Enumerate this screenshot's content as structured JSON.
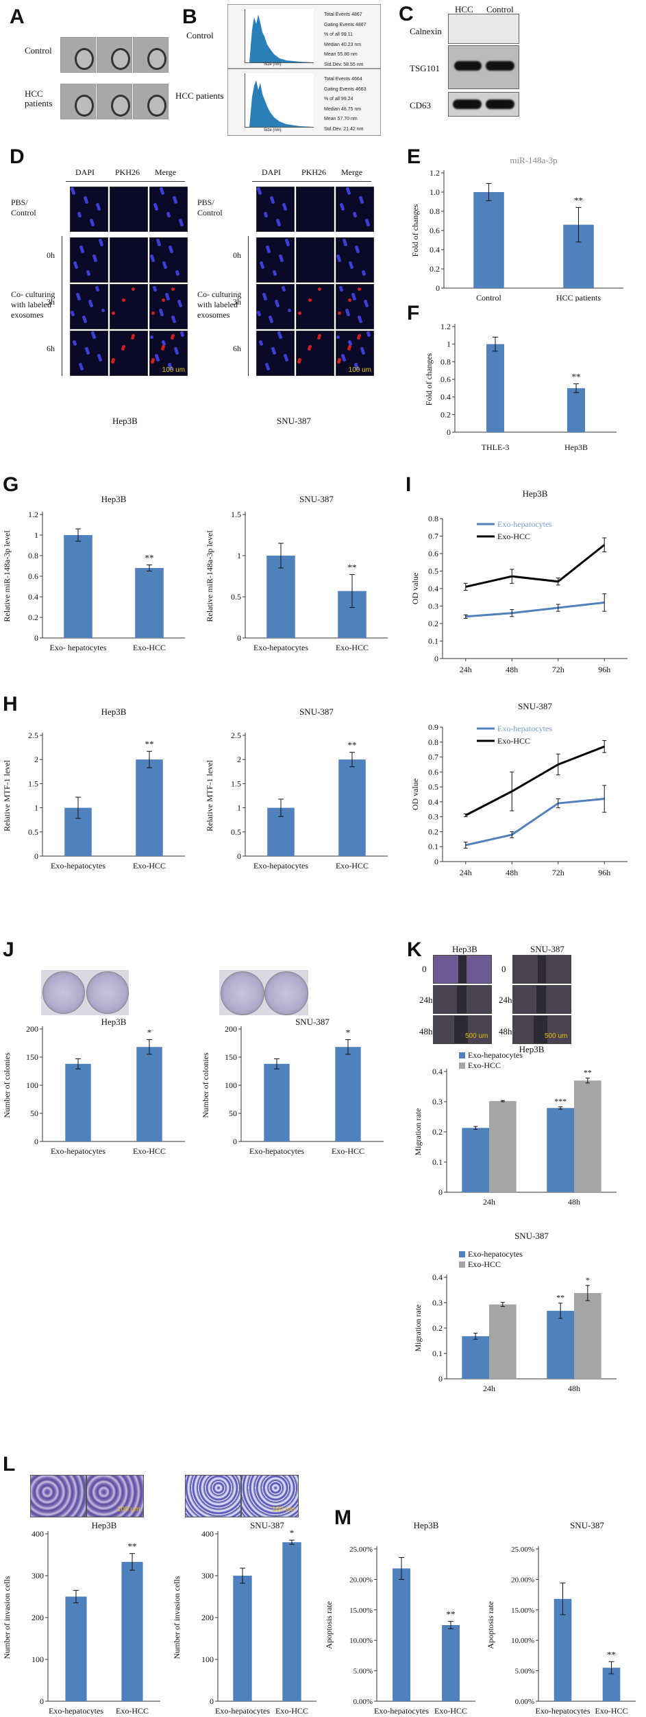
{
  "panels": {
    "A": {
      "letter": "A",
      "rows": [
        "Control",
        "HCC patients"
      ]
    },
    "B": {
      "letter": "B",
      "rows": [
        "Control",
        "HCC patients"
      ],
      "table_labels": [
        "Total Events",
        "Gating Events",
        "% of all",
        "Median",
        "Mean",
        "Std.Dev."
      ],
      "control_values": [
        "4867",
        "4867",
        "99.11",
        "40.23",
        "55.86",
        "58.55"
      ],
      "hcc_values": [
        "4664",
        "4663",
        "99.24",
        "48.75",
        "57.70",
        "21.42"
      ],
      "unit": "nm",
      "x_axis": "Size (nm)"
    },
    "C": {
      "letter": "C",
      "cols": [
        "HCC",
        "Control"
      ],
      "rows": [
        "Calnexin",
        "TSG101",
        "CD63"
      ]
    },
    "D": {
      "letter": "D",
      "cols": [
        "DAPI",
        "PKH26",
        "Merge"
      ],
      "control_label": "PBS/ Control",
      "group_label": "Co- culturing with labeled exosomes",
      "times": [
        "0h",
        "3h",
        "6h"
      ],
      "scale": "100 um",
      "left_cell": "Hep3B",
      "right_cell": "SNU-387"
    },
    "E": {
      "letter": "E",
      "title": "miR-148a-3p"
    },
    "F": {
      "letter": "F"
    },
    "G": {
      "letter": "G"
    },
    "H": {
      "letter": "H"
    },
    "I": {
      "letter": "I"
    },
    "J": {
      "letter": "J"
    },
    "K": {
      "letter": "K",
      "cols": [
        "Hep3B",
        "SNU-387"
      ],
      "rows": [
        "0",
        "24h",
        "48h"
      ],
      "scale": "500 um"
    },
    "L": {
      "letter": "L",
      "scale": "100 um"
    },
    "M": {
      "letter": "M"
    }
  },
  "chart_data": [
    {
      "id": "E",
      "type": "bar",
      "title": "miR-148a-3p",
      "categories": [
        "Control",
        "HCC patients"
      ],
      "values": [
        1.0,
        0.66
      ],
      "errors": [
        0.09,
        0.18
      ],
      "sig": [
        "",
        "**"
      ],
      "ylabel": "Fold of changes",
      "ylim": [
        0,
        1.2
      ],
      "ticks": [
        0,
        0.2,
        0.4,
        0.6,
        0.8,
        1.0,
        1.2
      ],
      "tick_labels": [
        "0",
        "0.2",
        "0.4",
        "0.6",
        "0.8",
        "1.0",
        "1.2"
      ]
    },
    {
      "id": "F",
      "type": "bar",
      "title": "",
      "categories": [
        "THLE-3",
        "Hep3B"
      ],
      "values": [
        1.0,
        0.5
      ],
      "errors": [
        0.08,
        0.05
      ],
      "sig": [
        "",
        "**"
      ],
      "ylabel": "Fold of changes",
      "ylim": [
        0,
        1.2
      ],
      "ticks": [
        0,
        0.2,
        0.4,
        0.6,
        0.8,
        1.0,
        1.2
      ],
      "tick_labels": [
        "0",
        "0.2",
        "0.4",
        "0.6",
        "0.8",
        "1",
        "1.2"
      ]
    },
    {
      "id": "G1",
      "type": "bar",
      "title": "Hep3B",
      "categories": [
        "Exo- hepatocytes",
        "Exo-HCC"
      ],
      "values": [
        1.0,
        0.68
      ],
      "errors": [
        0.06,
        0.03
      ],
      "sig": [
        "",
        "**"
      ],
      "ylabel": "Relative miR-148a-3p level",
      "ylim": [
        0,
        1.2
      ],
      "ticks": [
        0,
        0.2,
        0.4,
        0.6,
        0.8,
        1.0,
        1.2
      ],
      "tick_labels": [
        "0",
        "0.2",
        "0.4",
        "0.6",
        "0.8",
        "1",
        "1.2"
      ]
    },
    {
      "id": "G2",
      "type": "bar",
      "title": "SNU-387",
      "categories": [
        "Exo-hepatocytes",
        "Exo-HCC"
      ],
      "values": [
        1.0,
        0.57
      ],
      "errors": [
        0.15,
        0.2
      ],
      "sig": [
        "",
        "**"
      ],
      "ylabel": "Relative miR-148a-3p level",
      "ylim": [
        0,
        1.5
      ],
      "ticks": [
        0,
        0.5,
        1.0,
        1.5
      ],
      "tick_labels": [
        "0",
        "0.5",
        "1",
        "1.5"
      ]
    },
    {
      "id": "H1",
      "type": "bar",
      "title": "Hep3B",
      "categories": [
        "Exo-hepatocytes",
        "Exo-HCC"
      ],
      "values": [
        1.0,
        2.0
      ],
      "errors": [
        0.22,
        0.17
      ],
      "sig": [
        "",
        "**"
      ],
      "ylabel": "Relative MTF-1 level",
      "ylim": [
        0,
        2.5
      ],
      "ticks": [
        0,
        0.5,
        1.0,
        1.5,
        2.0,
        2.5
      ],
      "tick_labels": [
        "0",
        "0.5",
        "1",
        "1.5",
        "2",
        "2.5"
      ]
    },
    {
      "id": "H2",
      "type": "bar",
      "title": "SNU-387",
      "categories": [
        "Exo-hepatocytes",
        "Exo-HCC"
      ],
      "values": [
        1.0,
        2.0
      ],
      "errors": [
        0.18,
        0.15
      ],
      "sig": [
        "",
        "**"
      ],
      "ylabel": "Relative MTF-1 level",
      "ylim": [
        0,
        2.5
      ],
      "ticks": [
        0,
        0.5,
        1.0,
        1.5,
        2.0,
        2.5
      ],
      "tick_labels": [
        "0",
        "0.5",
        "1",
        "1.5",
        "2",
        "2.5"
      ]
    },
    {
      "id": "I1",
      "type": "line",
      "title": "Hep3B",
      "x": [
        "24h",
        "48h",
        "72h",
        "96h"
      ],
      "series": [
        {
          "name": "Exo-hepatocytes",
          "color": "#4f81bd",
          "values": [
            0.24,
            0.26,
            0.29,
            0.32
          ],
          "errors": [
            0.01,
            0.02,
            0.02,
            0.05
          ]
        },
        {
          "name": "Exo-HCC",
          "color": "#000000",
          "values": [
            0.41,
            0.47,
            0.44,
            0.65
          ],
          "errors": [
            0.02,
            0.04,
            0.02,
            0.04
          ]
        }
      ],
      "ylabel": "OD value",
      "ylim": [
        0,
        0.8
      ],
      "ticks": [
        0,
        0.1,
        0.2,
        0.3,
        0.4,
        0.5,
        0.6,
        0.7,
        0.8
      ],
      "tick_labels": [
        "0",
        "0.1",
        "0.2",
        "0.3",
        "0.4",
        "0.5",
        "0.6",
        "0.7",
        "0.8"
      ]
    },
    {
      "id": "I2",
      "type": "line",
      "title": "SNU-387",
      "x": [
        "24h",
        "48h",
        "72h",
        "96h"
      ],
      "series": [
        {
          "name": "Exo-hepatocytes",
          "color": "#4f81bd",
          "values": [
            0.11,
            0.18,
            0.39,
            0.42
          ],
          "errors": [
            0.02,
            0.02,
            0.03,
            0.09
          ]
        },
        {
          "name": "Exo-HCC",
          "color": "#000000",
          "values": [
            0.31,
            0.47,
            0.65,
            0.77
          ],
          "errors": [
            0.01,
            0.13,
            0.07,
            0.04
          ]
        }
      ],
      "ylabel": "OD value",
      "ylim": [
        0,
        0.9
      ],
      "ticks": [
        0,
        0.1,
        0.2,
        0.3,
        0.4,
        0.5,
        0.6,
        0.7,
        0.8,
        0.9
      ],
      "tick_labels": [
        "0",
        "0.1",
        "0.2",
        "0.3",
        "0.4",
        "0.5",
        "0.6",
        "0.7",
        "0.8",
        "0.9"
      ]
    },
    {
      "id": "J1",
      "type": "bar",
      "title": "Hep3B",
      "categories": [
        "Exo-hepatocytes",
        "Exo-HCC"
      ],
      "values": [
        138,
        168
      ],
      "errors": [
        9,
        13
      ],
      "sig": [
        "",
        "*"
      ],
      "ylabel": "Number of colonies",
      "ylim": [
        0,
        200
      ],
      "ticks": [
        0,
        50,
        100,
        150,
        200
      ],
      "tick_labels": [
        "0",
        "50",
        "100",
        "150",
        "200"
      ]
    },
    {
      "id": "J2",
      "type": "bar",
      "title": "SNU-387",
      "categories": [
        "Exo-hepatocytes",
        "Exo-HCC"
      ],
      "values": [
        138,
        168
      ],
      "errors": [
        9,
        13
      ],
      "sig": [
        "",
        "*"
      ],
      "ylabel": "Number of colonies",
      "ylim": [
        0,
        200
      ],
      "ticks": [
        0,
        50,
        100,
        150,
        200
      ],
      "tick_labels": [
        "0",
        "50",
        "100",
        "150",
        "200"
      ]
    },
    {
      "id": "K1",
      "type": "bar",
      "title": "Hep3B",
      "categories": [
        "24h",
        "48h"
      ],
      "series": [
        {
          "name": "Exo-hepatocytes",
          "color": "#4f81bd",
          "values": [
            0.213,
            0.279
          ],
          "errors": [
            0.005,
            0.004
          ],
          "sig": [
            "",
            "***"
          ]
        },
        {
          "name": "Exo-HCC",
          "color": "#a5a5a5",
          "values": [
            0.302,
            0.37
          ],
          "errors": [
            0.002,
            0.008
          ],
          "sig": [
            "",
            "**"
          ]
        }
      ],
      "ylabel": "Migration rate",
      "ylim": [
        0,
        0.4
      ],
      "ticks": [
        0,
        0.1,
        0.2,
        0.3,
        0.4
      ],
      "tick_labels": [
        "0",
        "0.1",
        "0.2",
        "0.3",
        "0.4"
      ]
    },
    {
      "id": "K2",
      "type": "bar",
      "title": "SNU-387",
      "categories": [
        "24h",
        "48h"
      ],
      "series": [
        {
          "name": "Exo-hepatocytes",
          "color": "#4f81bd",
          "values": [
            0.168,
            0.268
          ],
          "errors": [
            0.012,
            0.03
          ],
          "sig": [
            "",
            "**"
          ]
        },
        {
          "name": "Exo-HCC",
          "color": "#a5a5a5",
          "values": [
            0.293,
            0.338
          ],
          "errors": [
            0.008,
            0.03
          ],
          "sig": [
            "",
            "*"
          ]
        }
      ],
      "ylabel": "Migration rate",
      "ylim": [
        0,
        0.4
      ],
      "ticks": [
        0,
        0.1,
        0.2,
        0.3,
        0.4
      ],
      "tick_labels": [
        "0",
        "0.1",
        "0.2",
        "0.3",
        "0.4"
      ]
    },
    {
      "id": "L1",
      "type": "bar",
      "title": "Hep3B",
      "categories": [
        "Exo-hepatocytes",
        "Exo-HCC"
      ],
      "values": [
        250,
        333
      ],
      "errors": [
        15,
        20
      ],
      "sig": [
        "",
        "**"
      ],
      "ylabel": "Number of invasion cells",
      "ylim": [
        0,
        400
      ],
      "ticks": [
        0,
        100,
        200,
        300,
        400
      ],
      "tick_labels": [
        "0",
        "100",
        "200",
        "300",
        "400"
      ]
    },
    {
      "id": "L2",
      "type": "bar",
      "title": "SNU-387",
      "categories": [
        "Exo-hepatocytes",
        "Exo-HCC"
      ],
      "values": [
        300,
        380
      ],
      "errors": [
        18,
        5
      ],
      "sig": [
        "",
        "*"
      ],
      "ylabel": "Number of invasion cells",
      "ylim": [
        0,
        400
      ],
      "ticks": [
        0,
        100,
        200,
        300,
        400
      ],
      "tick_labels": [
        "0",
        "100",
        "200",
        "300",
        "400"
      ]
    },
    {
      "id": "M1",
      "type": "bar",
      "title": "Hep3B",
      "categories": [
        "Exo-hepatocytes",
        "Exo-HCC"
      ],
      "values": [
        21.8,
        12.5
      ],
      "errors": [
        1.8,
        0.6
      ],
      "sig": [
        "",
        "**"
      ],
      "ylabel": "Apoptosis rate",
      "ylim": [
        0,
        25
      ],
      "ticks": [
        0,
        5,
        10,
        15,
        20,
        25
      ],
      "tick_labels": [
        "0.00%",
        "5.00%",
        "10.00%",
        "15.00%",
        "20.00%",
        "25.00%"
      ]
    },
    {
      "id": "M2",
      "type": "bar",
      "title": "SNU-387",
      "categories": [
        "Exo-hepatocytes",
        "Exo-HCC"
      ],
      "values": [
        16.8,
        5.5
      ],
      "errors": [
        2.6,
        1.0
      ],
      "sig": [
        "",
        "**"
      ],
      "ylabel": "Apoptosis rate",
      "ylim": [
        0,
        25
      ],
      "ticks": [
        0,
        5,
        10,
        15,
        20,
        25
      ],
      "tick_labels": [
        "0.00%",
        "5.00%",
        "10.00%",
        "15.00%",
        "20.00%",
        "25.00%"
      ]
    }
  ],
  "colors": {
    "bar": "#4f81bd",
    "gray": "#a5a5a5",
    "text": "#111111"
  }
}
